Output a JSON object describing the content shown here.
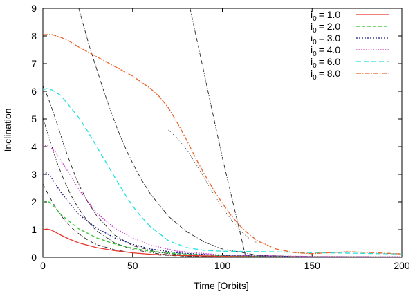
{
  "chart_data": {
    "type": "line",
    "xlabel": "Time [Orbits]",
    "ylabel": "Inclination",
    "xlim": [
      0,
      200
    ],
    "ylim": [
      0,
      9
    ],
    "xticks": [
      0,
      50,
      100,
      150,
      200
    ],
    "yticks": [
      0,
      1,
      2,
      3,
      4,
      5,
      6,
      7,
      8,
      9
    ],
    "grid": false,
    "legend_position": "top-right",
    "series": [
      {
        "name_prefix": "i",
        "name_sub": "0",
        "name_value": "= 1.0",
        "color": "#e8352a",
        "dash": "",
        "points": [
          [
            0,
            1.0
          ],
          [
            2,
            1.02
          ],
          [
            4,
            1.0
          ],
          [
            6,
            0.94
          ],
          [
            10,
            0.8
          ],
          [
            15,
            0.65
          ],
          [
            20,
            0.52
          ],
          [
            30,
            0.35
          ],
          [
            40,
            0.24
          ],
          [
            50,
            0.16
          ],
          [
            60,
            0.11
          ],
          [
            75,
            0.07
          ],
          [
            100,
            0.04
          ],
          [
            150,
            0.02
          ],
          [
            200,
            0.01
          ]
        ]
      },
      {
        "name_prefix": "i",
        "name_sub": "0",
        "name_value": "= 2.0",
        "color": "#2ec42e",
        "dash": "5,3",
        "points": [
          [
            0,
            2.0
          ],
          [
            2,
            2.03
          ],
          [
            4,
            1.98
          ],
          [
            7,
            1.78
          ],
          [
            10,
            1.55
          ],
          [
            15,
            1.28
          ],
          [
            20,
            1.03
          ],
          [
            30,
            0.7
          ],
          [
            40,
            0.48
          ],
          [
            50,
            0.33
          ],
          [
            60,
            0.22
          ],
          [
            75,
            0.13
          ],
          [
            100,
            0.06
          ],
          [
            150,
            0.02
          ],
          [
            200,
            0.01
          ]
        ]
      },
      {
        "name_prefix": "i",
        "name_sub": "0",
        "name_value": "= 3.0",
        "color": "#1a1a8c",
        "dash": "2,2",
        "points": [
          [
            0,
            3.0
          ],
          [
            2,
            3.05
          ],
          [
            4,
            2.95
          ],
          [
            7,
            2.65
          ],
          [
            10,
            2.35
          ],
          [
            15,
            1.95
          ],
          [
            20,
            1.55
          ],
          [
            30,
            1.05
          ],
          [
            40,
            0.7
          ],
          [
            50,
            0.47
          ],
          [
            60,
            0.3
          ],
          [
            75,
            0.16
          ],
          [
            100,
            0.07
          ],
          [
            150,
            0.02
          ],
          [
            200,
            0.01
          ]
        ]
      },
      {
        "name_prefix": "i",
        "name_sub": "0",
        "name_value": "= 4.0",
        "color": "#c832c8",
        "dash": "1.5,2",
        "points": [
          [
            0,
            4.0
          ],
          [
            2,
            4.05
          ],
          [
            4,
            4.0
          ],
          [
            7,
            3.8
          ],
          [
            10,
            3.5
          ],
          [
            15,
            3.0
          ],
          [
            20,
            2.45
          ],
          [
            30,
            1.6
          ],
          [
            40,
            1.05
          ],
          [
            50,
            0.7
          ],
          [
            60,
            0.44
          ],
          [
            75,
            0.22
          ],
          [
            100,
            0.08
          ],
          [
            150,
            0.03
          ],
          [
            200,
            0.02
          ]
        ]
      },
      {
        "name_prefix": "i",
        "name_sub": "0",
        "name_value": "= 6.0",
        "color": "#22e0e0",
        "dash": "7,4",
        "points": [
          [
            0,
            6.05
          ],
          [
            2,
            6.1
          ],
          [
            5,
            6.05
          ],
          [
            10,
            5.85
          ],
          [
            15,
            5.45
          ],
          [
            20,
            5.05
          ],
          [
            25,
            4.55
          ],
          [
            30,
            4.0
          ],
          [
            35,
            3.45
          ],
          [
            40,
            2.9
          ],
          [
            45,
            2.35
          ],
          [
            50,
            1.85
          ],
          [
            55,
            1.45
          ],
          [
            60,
            1.1
          ],
          [
            70,
            0.6
          ],
          [
            80,
            0.35
          ],
          [
            90,
            0.25
          ],
          [
            100,
            0.22
          ],
          [
            125,
            0.2
          ],
          [
            150,
            0.17
          ],
          [
            200,
            0.12
          ]
        ]
      },
      {
        "name_prefix": "i",
        "name_sub": "0",
        "name_value": "= 8.0",
        "color": "#e8642a",
        "dash": "7,2,1.5,2",
        "points": [
          [
            0,
            8.05
          ],
          [
            5,
            8.05
          ],
          [
            10,
            7.95
          ],
          [
            15,
            7.8
          ],
          [
            20,
            7.6
          ],
          [
            30,
            7.25
          ],
          [
            40,
            6.9
          ],
          [
            50,
            6.55
          ],
          [
            60,
            6.1
          ],
          [
            65,
            5.8
          ],
          [
            70,
            5.4
          ],
          [
            75,
            4.85
          ],
          [
            80,
            4.25
          ],
          [
            85,
            3.6
          ],
          [
            90,
            3.0
          ],
          [
            95,
            2.45
          ],
          [
            100,
            1.95
          ],
          [
            105,
            1.5
          ],
          [
            110,
            1.12
          ],
          [
            115,
            0.82
          ],
          [
            120,
            0.58
          ],
          [
            130,
            0.3
          ],
          [
            140,
            0.17
          ],
          [
            150,
            0.13
          ],
          [
            160,
            0.17
          ],
          [
            170,
            0.2
          ],
          [
            180,
            0.18
          ],
          [
            190,
            0.15
          ],
          [
            200,
            0.12
          ]
        ]
      }
    ],
    "reference_curves": [
      {
        "color": "#222222",
        "dash": "6,2,1,2",
        "points": [
          [
            0,
            2.65
          ],
          [
            4,
            2.15
          ],
          [
            8,
            1.7
          ],
          [
            12,
            1.35
          ],
          [
            16,
            1.07
          ],
          [
            20,
            0.85
          ],
          [
            25,
            0.62
          ],
          [
            30,
            0.46
          ],
          [
            40,
            0.27
          ],
          [
            50,
            0.16
          ],
          [
            65,
            0.08
          ],
          [
            80,
            0.04
          ],
          [
            100,
            0.02
          ],
          [
            150,
            0.01
          ],
          [
            200,
            0.0
          ]
        ]
      },
      {
        "color": "#222222",
        "dash": "6,2,1,2",
        "points": [
          [
            0,
            5.05
          ],
          [
            4,
            4.2
          ],
          [
            8,
            3.4
          ],
          [
            12,
            2.75
          ],
          [
            16,
            2.2
          ],
          [
            20,
            1.75
          ],
          [
            25,
            1.3
          ],
          [
            30,
            0.95
          ],
          [
            40,
            0.52
          ],
          [
            50,
            0.28
          ],
          [
            65,
            0.12
          ],
          [
            80,
            0.05
          ],
          [
            100,
            0.02
          ],
          [
            150,
            0.0
          ],
          [
            200,
            0.0
          ]
        ]
      },
      {
        "color": "#222222",
        "dash": "6,2,1,2",
        "points": [
          [
            0,
            6.2
          ],
          [
            3,
            5.75
          ],
          [
            6,
            5.2
          ],
          [
            9,
            4.6
          ],
          [
            12,
            4.0
          ],
          [
            15,
            3.45
          ],
          [
            18,
            2.95
          ],
          [
            21,
            2.5
          ],
          [
            25,
            2.0
          ],
          [
            30,
            1.5
          ],
          [
            40,
            0.8
          ],
          [
            50,
            0.42
          ],
          [
            65,
            0.17
          ],
          [
            80,
            0.07
          ],
          [
            100,
            0.02
          ],
          [
            150,
            0.0
          ],
          [
            200,
            0.0
          ]
        ]
      },
      {
        "color": "#222222",
        "dash": "6,2,1,2",
        "points": [
          [
            20,
            9.0
          ],
          [
            23,
            8.3
          ],
          [
            26,
            7.6
          ],
          [
            30,
            6.8
          ],
          [
            34,
            6.0
          ],
          [
            38,
            5.25
          ],
          [
            42,
            4.55
          ],
          [
            46,
            3.95
          ],
          [
            50,
            3.4
          ],
          [
            55,
            2.8
          ],
          [
            60,
            2.28
          ],
          [
            70,
            1.48
          ],
          [
            80,
            0.93
          ],
          [
            90,
            0.55
          ],
          [
            100,
            0.3
          ],
          [
            120,
            0.07
          ],
          [
            150,
            0.02
          ],
          [
            200,
            0.0
          ]
        ]
      },
      {
        "color": "#222222",
        "dash": "6,2,1,2",
        "points": [
          [
            82,
            9.0
          ],
          [
            84,
            8.4
          ],
          [
            86,
            7.8
          ],
          [
            88,
            7.2
          ],
          [
            90,
            6.6
          ],
          [
            92,
            6.0
          ],
          [
            94,
            5.4
          ],
          [
            96,
            4.8
          ],
          [
            98,
            4.2
          ],
          [
            100,
            3.6
          ],
          [
            102,
            3.05
          ],
          [
            104,
            2.5
          ],
          [
            106,
            1.95
          ],
          [
            108,
            1.4
          ],
          [
            110,
            0.85
          ],
          [
            112,
            0.3
          ],
          [
            113,
            0.0
          ]
        ]
      },
      {
        "color": "#444444",
        "dash": "1,2",
        "points": [
          [
            70,
            4.6
          ],
          [
            75,
            4.3
          ],
          [
            80,
            3.9
          ],
          [
            85,
            3.4
          ],
          [
            90,
            2.85
          ],
          [
            95,
            2.3
          ],
          [
            100,
            1.8
          ],
          [
            105,
            1.35
          ],
          [
            110,
            0.95
          ],
          [
            115,
            0.68
          ],
          [
            120,
            0.5
          ]
        ]
      }
    ]
  }
}
